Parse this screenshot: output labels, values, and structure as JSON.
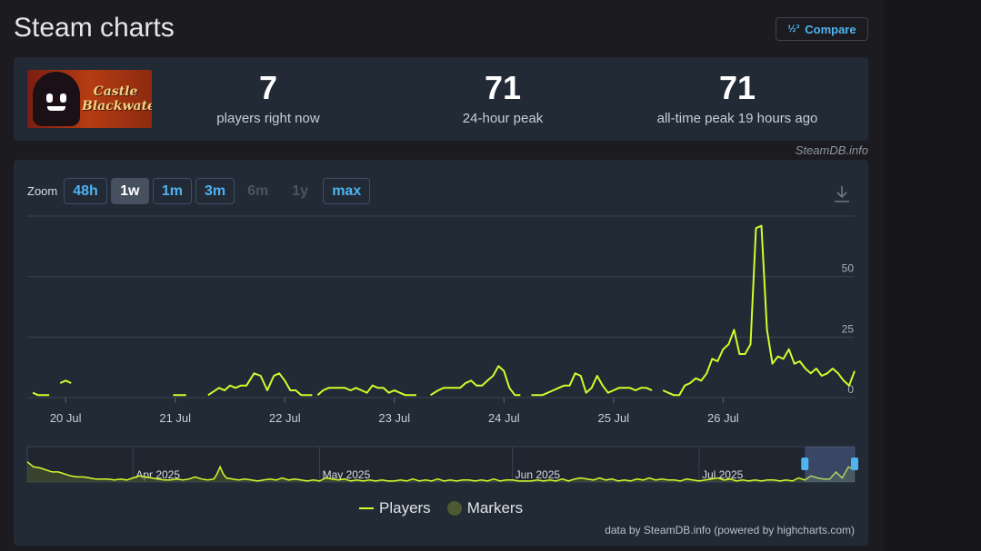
{
  "page": {
    "title": "Steam charts"
  },
  "compare": {
    "icon": "compare-icon",
    "label": "Compare"
  },
  "app": {
    "image_text_1": "Castle",
    "image_text_2": "Blackwater"
  },
  "stats": [
    {
      "value": "7",
      "label": "players right now"
    },
    {
      "value": "71",
      "label": "24-hour peak"
    },
    {
      "value": "71",
      "label": "all-time peak 19 hours ago"
    }
  ],
  "credit_top": "SteamDB.info",
  "zoom": {
    "label": "Zoom",
    "buttons": [
      {
        "label": "48h",
        "state": "normal"
      },
      {
        "label": "1w",
        "state": "active"
      },
      {
        "label": "1m",
        "state": "normal"
      },
      {
        "label": "3m",
        "state": "normal"
      },
      {
        "label": "6m",
        "state": "disabled"
      },
      {
        "label": "1y",
        "state": "disabled"
      },
      {
        "label": "max",
        "state": "normal"
      }
    ]
  },
  "legend": {
    "players": "Players",
    "markers": "Markers"
  },
  "credit_bottom": "data by SteamDB.info (powered by highcharts.com)",
  "colors": {
    "series": "#d3fc2b",
    "accent": "#4fb3f0",
    "markers": "#4b5a30"
  },
  "chart_data": [
    {
      "type": "line",
      "title": "",
      "series": [
        {
          "name": "Players",
          "x_unit": "days since 19 Jul 2025 00:00",
          "points": [
            [
              0.7,
              2
            ],
            [
              0.75,
              1
            ],
            [
              0.85,
              1
            ],
            [
              0.86,
              null
            ],
            [
              0.95,
              6
            ],
            [
              1.0,
              7
            ],
            [
              1.05,
              6
            ],
            [
              1.06,
              null
            ],
            [
              1.98,
              1
            ],
            [
              2.1,
              1
            ],
            [
              2.11,
              null
            ],
            [
              2.3,
              1
            ],
            [
              2.4,
              4
            ],
            [
              2.45,
              3
            ],
            [
              2.5,
              5
            ],
            [
              2.55,
              4
            ],
            [
              2.6,
              5
            ],
            [
              2.65,
              5
            ],
            [
              2.72,
              10
            ],
            [
              2.78,
              9
            ],
            [
              2.84,
              3
            ],
            [
              2.9,
              9
            ],
            [
              2.95,
              10
            ],
            [
              3.0,
              7
            ],
            [
              3.05,
              3
            ],
            [
              3.1,
              3
            ],
            [
              3.15,
              1
            ],
            [
              3.2,
              1
            ],
            [
              3.25,
              1
            ],
            [
              3.26,
              null
            ],
            [
              3.3,
              1
            ],
            [
              3.35,
              3
            ],
            [
              3.4,
              4
            ],
            [
              3.45,
              4
            ],
            [
              3.5,
              4
            ],
            [
              3.55,
              4
            ],
            [
              3.6,
              3
            ],
            [
              3.65,
              4
            ],
            [
              3.7,
              3
            ],
            [
              3.75,
              2
            ],
            [
              3.8,
              5
            ],
            [
              3.85,
              4
            ],
            [
              3.9,
              4
            ],
            [
              3.95,
              2
            ],
            [
              4.0,
              3
            ],
            [
              4.05,
              2
            ],
            [
              4.1,
              1
            ],
            [
              4.15,
              1
            ],
            [
              4.2,
              1
            ],
            [
              4.21,
              null
            ],
            [
              4.33,
              1
            ],
            [
              4.4,
              3
            ],
            [
              4.45,
              4
            ],
            [
              4.5,
              4
            ],
            [
              4.55,
              4
            ],
            [
              4.6,
              4
            ],
            [
              4.65,
              6
            ],
            [
              4.7,
              7
            ],
            [
              4.75,
              5
            ],
            [
              4.8,
              5
            ],
            [
              4.85,
              7
            ],
            [
              4.9,
              9
            ],
            [
              4.95,
              13
            ],
            [
              5.0,
              11
            ],
            [
              5.05,
              4
            ],
            [
              5.1,
              1
            ],
            [
              5.15,
              1
            ],
            [
              5.16,
              null
            ],
            [
              5.25,
              1
            ],
            [
              5.3,
              1
            ],
            [
              5.35,
              1
            ],
            [
              5.4,
              2
            ],
            [
              5.45,
              3
            ],
            [
              5.5,
              4
            ],
            [
              5.55,
              5
            ],
            [
              5.6,
              5
            ],
            [
              5.65,
              10
            ],
            [
              5.7,
              9
            ],
            [
              5.75,
              2
            ],
            [
              5.8,
              4
            ],
            [
              5.85,
              9
            ],
            [
              5.9,
              5
            ],
            [
              5.95,
              2
            ],
            [
              6.0,
              3
            ],
            [
              6.05,
              4
            ],
            [
              6.1,
              4
            ],
            [
              6.15,
              4
            ],
            [
              6.2,
              3
            ],
            [
              6.25,
              4
            ],
            [
              6.3,
              4
            ],
            [
              6.35,
              3
            ],
            [
              6.36,
              null
            ],
            [
              6.45,
              3
            ],
            [
              6.5,
              2
            ],
            [
              6.55,
              1
            ],
            [
              6.6,
              1
            ],
            [
              6.65,
              5
            ],
            [
              6.7,
              6
            ],
            [
              6.75,
              8
            ],
            [
              6.8,
              7
            ],
            [
              6.85,
              10
            ],
            [
              6.9,
              16
            ],
            [
              6.95,
              15
            ],
            [
              7.0,
              20
            ],
            [
              7.05,
              22
            ],
            [
              7.1,
              28
            ],
            [
              7.15,
              18
            ],
            [
              7.2,
              18
            ],
            [
              7.25,
              22
            ],
            [
              7.3,
              70
            ],
            [
              7.35,
              71
            ],
            [
              7.4,
              28
            ],
            [
              7.45,
              14
            ],
            [
              7.5,
              17
            ],
            [
              7.55,
              16
            ],
            [
              7.6,
              20
            ],
            [
              7.65,
              14
            ],
            [
              7.7,
              15
            ],
            [
              7.75,
              12
            ],
            [
              7.8,
              10
            ],
            [
              7.85,
              12
            ],
            [
              7.9,
              9
            ],
            [
              7.95,
              10
            ],
            [
              8.0,
              12
            ],
            [
              8.05,
              10
            ],
            [
              8.1,
              7
            ],
            [
              8.15,
              5
            ],
            [
              8.2,
              11
            ]
          ]
        }
      ],
      "x_tick_labels": [
        "20 Jul",
        "21 Jul",
        "22 Jul",
        "23 Jul",
        "24 Jul",
        "25 Jul",
        "26 Jul"
      ],
      "x_ticks": [
        1,
        2,
        3,
        4,
        5,
        6,
        7
      ],
      "xlim": [
        0.65,
        8.2
      ],
      "y_tick_labels": [
        "0",
        "25",
        "50"
      ],
      "y_ticks": [
        0,
        25,
        50
      ],
      "ylim": [
        0,
        75
      ],
      "grid": true
    },
    {
      "type": "area",
      "title": "",
      "role": "navigator",
      "x_unit": "days since 15 Mar 2025",
      "xlim": [
        0,
        133
      ],
      "ylim": [
        0,
        75
      ],
      "x_tick_labels": [
        "Apr 2025",
        "May 2025",
        "Jun 2025",
        "Jul 2025"
      ],
      "x_ticks": [
        17,
        47,
        78,
        108
      ],
      "values": [
        [
          0,
          20
        ],
        [
          1,
          15
        ],
        [
          2,
          14
        ],
        [
          3,
          12
        ],
        [
          4,
          10
        ],
        [
          5,
          10
        ],
        [
          6,
          8
        ],
        [
          7,
          6
        ],
        [
          8,
          5
        ],
        [
          9,
          5
        ],
        [
          10,
          4
        ],
        [
          11,
          3
        ],
        [
          12,
          3
        ],
        [
          13,
          3
        ],
        [
          14,
          2
        ],
        [
          15,
          3
        ],
        [
          16,
          2
        ],
        [
          17,
          4
        ],
        [
          18,
          6
        ],
        [
          19,
          5
        ],
        [
          20,
          4
        ],
        [
          21,
          3
        ],
        [
          22,
          2
        ],
        [
          23,
          2
        ],
        [
          24,
          3
        ],
        [
          25,
          2
        ],
        [
          26,
          3
        ],
        [
          27,
          5
        ],
        [
          28,
          3
        ],
        [
          29,
          2
        ],
        [
          30,
          3
        ],
        [
          30.5,
          8
        ],
        [
          31,
          15
        ],
        [
          31.5,
          8
        ],
        [
          32,
          4
        ],
        [
          33,
          3
        ],
        [
          34,
          2
        ],
        [
          35,
          3
        ],
        [
          36,
          2
        ],
        [
          37,
          1
        ],
        [
          38,
          2
        ],
        [
          39,
          3
        ],
        [
          40,
          2
        ],
        [
          41,
          4
        ],
        [
          42,
          2
        ],
        [
          43,
          3
        ],
        [
          44,
          2
        ],
        [
          45,
          1
        ],
        [
          46,
          2
        ],
        [
          47,
          1
        ],
        [
          48,
          4
        ],
        [
          49,
          3
        ],
        [
          50,
          2
        ],
        [
          51,
          3
        ],
        [
          52,
          1
        ],
        [
          53,
          2
        ],
        [
          54,
          1
        ],
        [
          55,
          2
        ],
        [
          56,
          1
        ],
        [
          57,
          2
        ],
        [
          58,
          1
        ],
        [
          59,
          1
        ],
        [
          60,
          2
        ],
        [
          61,
          1
        ],
        [
          62,
          3
        ],
        [
          63,
          1
        ],
        [
          64,
          2
        ],
        [
          65,
          1
        ],
        [
          66,
          3
        ],
        [
          67,
          1
        ],
        [
          68,
          2
        ],
        [
          69,
          1
        ],
        [
          70,
          2
        ],
        [
          71,
          2
        ],
        [
          72,
          1
        ],
        [
          73,
          2
        ],
        [
          74,
          1
        ],
        [
          75,
          3
        ],
        [
          76,
          1
        ],
        [
          77,
          2
        ],
        [
          78,
          2
        ],
        [
          79,
          1
        ],
        [
          80,
          1
        ],
        [
          81,
          1
        ],
        [
          82,
          2
        ],
        [
          83,
          1
        ],
        [
          84,
          2
        ],
        [
          85,
          1
        ],
        [
          86,
          3
        ],
        [
          87,
          1
        ],
        [
          88,
          3
        ],
        [
          89,
          4
        ],
        [
          90,
          3
        ],
        [
          91,
          2
        ],
        [
          92,
          4
        ],
        [
          93,
          2
        ],
        [
          94,
          3
        ],
        [
          95,
          1
        ],
        [
          96,
          2
        ],
        [
          97,
          1
        ],
        [
          98,
          3
        ],
        [
          99,
          2
        ],
        [
          100,
          4
        ],
        [
          101,
          2
        ],
        [
          102,
          3
        ],
        [
          103,
          2
        ],
        [
          104,
          2
        ],
        [
          105,
          1
        ],
        [
          106,
          3
        ],
        [
          107,
          2
        ],
        [
          108,
          1
        ],
        [
          109,
          2
        ],
        [
          110,
          3
        ],
        [
          111,
          4
        ],
        [
          112,
          2
        ],
        [
          113,
          3
        ],
        [
          114,
          1
        ],
        [
          115,
          2
        ],
        [
          116,
          1
        ],
        [
          117,
          2
        ],
        [
          118,
          1
        ],
        [
          119,
          2
        ],
        [
          120,
          2
        ],
        [
          121,
          1
        ],
        [
          122,
          2
        ],
        [
          123,
          1
        ],
        [
          124,
          4
        ],
        [
          125,
          2
        ],
        [
          126,
          6
        ],
        [
          127,
          4
        ],
        [
          128,
          3
        ],
        [
          129,
          3
        ],
        [
          130,
          10
        ],
        [
          131,
          4
        ],
        [
          132,
          15
        ],
        [
          133,
          12
        ]
      ],
      "selection": [
        125,
        133
      ]
    }
  ]
}
